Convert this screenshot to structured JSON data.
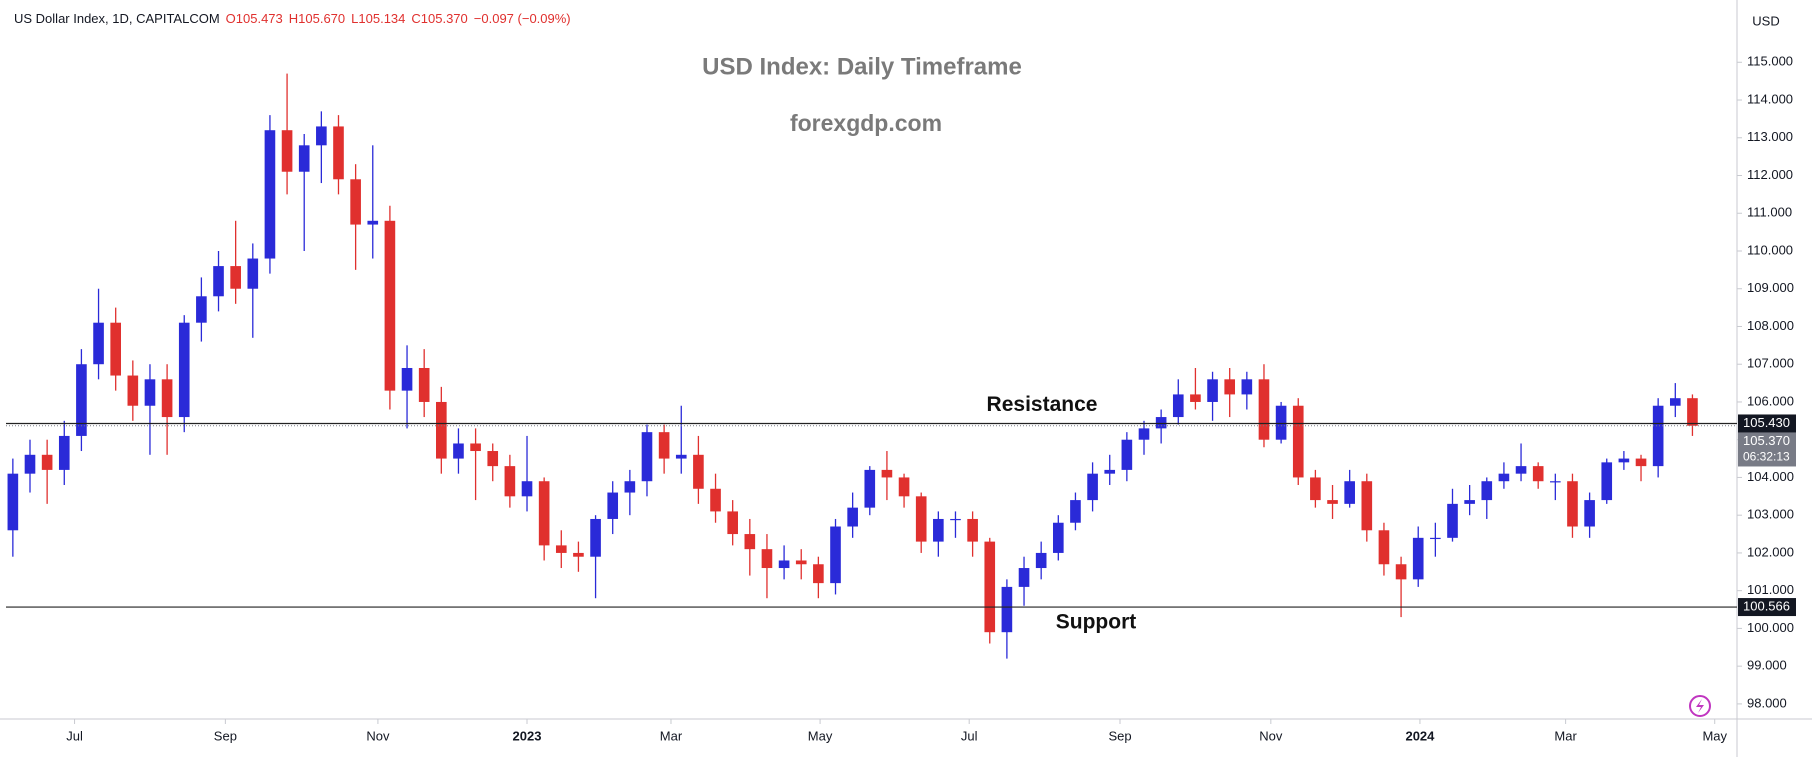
{
  "chart_data": {
    "type": "candlestick",
    "header": {
      "symbol": "US Dollar Index, 1D, CAPITALCOM",
      "open": "O105.473",
      "high": "H105.670",
      "low": "L105.134",
      "close": "C105.370",
      "change": "−0.097 (−0.09%)"
    },
    "title": "USD Index: Daily Timeframe",
    "subtitle": "forexgdp.com",
    "currency": "USD",
    "up_color": "#2a2ad8",
    "down_color": "#e0302e",
    "open": [
      102.6,
      104.1,
      104.6,
      104.2,
      105.1,
      107.0,
      108.1,
      106.7,
      105.9,
      106.6,
      105.6,
      108.1,
      108.8,
      109.6,
      109.0,
      109.8,
      113.2,
      112.1,
      112.8,
      113.3,
      111.9,
      110.7,
      110.8,
      106.3,
      106.9,
      106.0,
      104.5,
      104.9,
      104.7,
      104.3,
      103.5,
      103.9,
      102.2,
      102.0,
      101.9,
      102.9,
      103.6,
      103.9,
      105.2,
      104.5,
      104.6,
      103.7,
      103.1,
      102.5,
      102.1,
      101.6,
      101.8,
      101.7,
      101.2,
      102.7,
      103.2,
      104.2,
      104.0,
      103.5,
      102.3,
      102.9,
      102.9,
      102.3,
      99.9,
      101.1,
      101.6,
      102.0,
      102.8,
      103.4,
      104.1,
      104.2,
      105.0,
      105.3,
      105.6,
      106.2,
      106.0,
      106.6,
      106.2,
      106.6,
      105.0,
      105.9,
      104.0,
      103.4,
      103.3,
      103.9,
      102.6,
      101.7,
      101.3,
      102.4,
      102.4,
      103.3,
      103.4,
      103.9,
      104.1,
      104.3,
      103.9,
      103.9,
      102.7,
      103.4,
      104.4,
      104.5,
      104.3,
      105.9,
      106.1
    ],
    "high": [
      104.5,
      105.0,
      105.0,
      105.5,
      107.4,
      109.0,
      108.5,
      107.1,
      107.0,
      107.0,
      108.3,
      109.3,
      110.0,
      110.8,
      110.2,
      113.6,
      114.7,
      113.1,
      113.7,
      113.6,
      112.3,
      112.8,
      111.2,
      107.5,
      107.4,
      106.4,
      105.3,
      105.3,
      104.9,
      104.6,
      105.1,
      104.0,
      102.6,
      102.3,
      103.0,
      103.9,
      104.2,
      105.4,
      105.4,
      105.9,
      105.1,
      104.1,
      103.4,
      102.9,
      102.5,
      102.2,
      102.1,
      101.9,
      102.9,
      103.6,
      104.3,
      104.7,
      104.1,
      103.6,
      103.1,
      103.1,
      103.1,
      102.4,
      101.3,
      101.9,
      102.3,
      103.0,
      103.6,
      104.4,
      104.6,
      105.2,
      105.5,
      105.8,
      106.6,
      106.9,
      106.8,
      106.9,
      106.8,
      107.0,
      106.0,
      106.1,
      104.2,
      103.8,
      104.2,
      104.1,
      102.8,
      101.9,
      102.7,
      102.8,
      103.7,
      103.8,
      104.0,
      104.4,
      104.9,
      104.4,
      104.1,
      104.1,
      103.6,
      104.5,
      104.7,
      104.6,
      106.1,
      106.5,
      106.2
    ],
    "low": [
      101.9,
      103.6,
      103.3,
      103.8,
      104.7,
      106.6,
      106.3,
      105.5,
      104.6,
      104.6,
      105.2,
      107.6,
      108.4,
      108.6,
      107.7,
      109.4,
      111.5,
      110.0,
      111.8,
      111.5,
      109.5,
      109.8,
      105.8,
      105.3,
      105.6,
      104.1,
      104.1,
      103.4,
      103.9,
      103.2,
      103.1,
      101.8,
      101.6,
      101.5,
      100.8,
      102.5,
      103.0,
      103.5,
      104.1,
      104.1,
      103.3,
      102.8,
      102.2,
      101.4,
      100.8,
      101.3,
      101.3,
      100.8,
      100.9,
      102.4,
      103.0,
      103.4,
      103.2,
      102.0,
      101.9,
      102.4,
      101.9,
      99.6,
      99.2,
      100.6,
      101.3,
      101.8,
      102.6,
      103.1,
      103.8,
      103.9,
      104.6,
      104.9,
      105.4,
      105.8,
      105.5,
      105.6,
      105.8,
      104.8,
      104.9,
      103.8,
      103.2,
      102.9,
      103.2,
      102.3,
      101.4,
      100.3,
      101.1,
      101.9,
      102.3,
      103.0,
      102.9,
      103.7,
      103.9,
      103.7,
      103.4,
      102.4,
      102.4,
      103.3,
      104.2,
      103.9,
      104.0,
      105.6,
      105.1
    ],
    "close": [
      104.1,
      104.6,
      104.2,
      105.1,
      107.0,
      108.1,
      106.7,
      105.9,
      106.6,
      105.6,
      108.1,
      108.8,
      109.6,
      109.0,
      109.8,
      113.2,
      112.1,
      112.8,
      113.3,
      111.9,
      110.7,
      110.8,
      106.3,
      106.9,
      106.0,
      104.5,
      104.9,
      104.7,
      104.3,
      103.5,
      103.9,
      102.2,
      102.0,
      101.9,
      102.9,
      103.6,
      103.9,
      105.2,
      104.5,
      104.6,
      103.7,
      103.1,
      102.5,
      102.1,
      101.6,
      101.8,
      101.7,
      101.2,
      102.7,
      103.2,
      104.2,
      104.0,
      103.5,
      102.3,
      102.9,
      102.9,
      102.3,
      99.9,
      101.1,
      101.6,
      102.0,
      102.8,
      103.4,
      104.1,
      104.2,
      105.0,
      105.3,
      105.6,
      106.2,
      106.0,
      106.6,
      106.2,
      106.6,
      105.0,
      105.9,
      104.0,
      103.4,
      103.3,
      103.9,
      102.6,
      101.7,
      101.3,
      102.4,
      102.4,
      103.3,
      103.4,
      103.9,
      104.1,
      104.3,
      103.9,
      103.9,
      102.7,
      103.4,
      104.4,
      104.5,
      104.3,
      105.9,
      106.1,
      105.37
    ],
    "xlim": [
      -0.4,
      100.6
    ],
    "xticks": [
      {
        "value": 3.6,
        "label": "Jul"
      },
      {
        "value": 12.4,
        "label": "Sep"
      },
      {
        "value": 21.3,
        "label": "Nov"
      },
      {
        "value": 30,
        "label": "2023"
      },
      {
        "value": 38.4,
        "label": "Mar"
      },
      {
        "value": 47.1,
        "label": "May"
      },
      {
        "value": 55.8,
        "label": "Jul"
      },
      {
        "value": 64.6,
        "label": "Sep"
      },
      {
        "value": 73.4,
        "label": "Nov"
      },
      {
        "value": 82.1,
        "label": "2024"
      },
      {
        "value": 90.6,
        "label": "Mar"
      },
      {
        "value": 99.3,
        "label": "May"
      }
    ],
    "ylim": [
      97.6,
      116.65
    ],
    "yticks": [
      {
        "value": 98,
        "label": "98.000"
      },
      {
        "value": 99,
        "label": "99.000"
      },
      {
        "value": 100,
        "label": "100.000"
      },
      {
        "value": 101,
        "label": "101.000"
      },
      {
        "value": 102,
        "label": "102.000"
      },
      {
        "value": 103,
        "label": "103.000"
      },
      {
        "value": 104,
        "label": "104.000"
      },
      {
        "value": 105,
        "label": "105.000"
      },
      {
        "value": 106,
        "label": "106.000"
      },
      {
        "value": 107,
        "label": "107.000"
      },
      {
        "value": 108,
        "label": "108.000"
      },
      {
        "value": 109,
        "label": "109.000"
      },
      {
        "value": 110,
        "label": "110.000"
      },
      {
        "value": 111,
        "label": "111.000"
      },
      {
        "value": 112,
        "label": "112.000"
      },
      {
        "value": 113,
        "label": "113.000"
      },
      {
        "value": 114,
        "label": "114.000"
      },
      {
        "value": 115,
        "label": "115.000"
      }
    ],
    "levels": [
      {
        "name": "Resistance",
        "value": 105.43,
        "label": "105.430"
      },
      {
        "name": "Support",
        "value": 100.566,
        "label": "100.566"
      }
    ],
    "last_price": {
      "value": 105.37,
      "label": "105.370",
      "countdown": "06:32:13"
    }
  }
}
